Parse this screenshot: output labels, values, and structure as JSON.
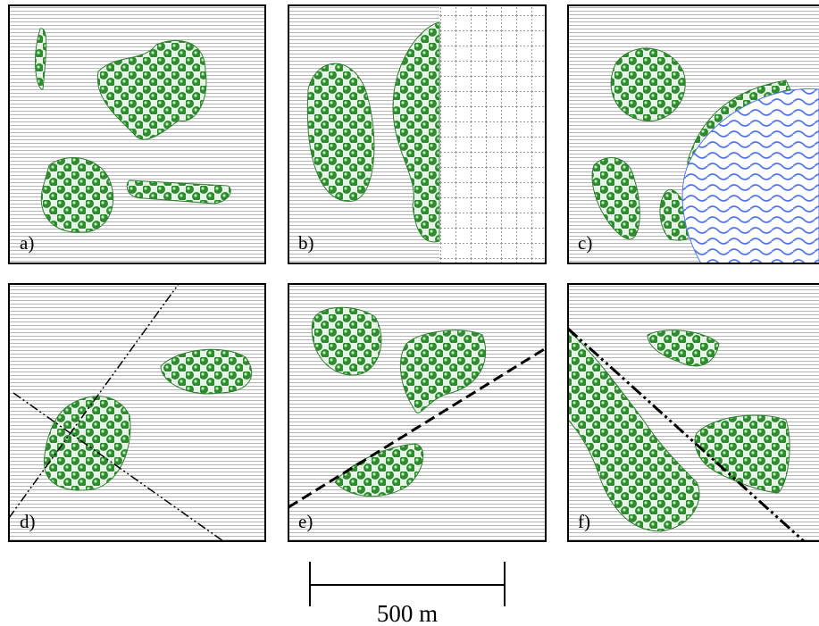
{
  "panels": [
    {
      "label": "a)"
    },
    {
      "label": "b)"
    },
    {
      "label": "c)"
    },
    {
      "label": "d)"
    },
    {
      "label": "e)"
    },
    {
      "label": "f)"
    }
  ],
  "scale_bar": {
    "label": "500 m"
  }
}
